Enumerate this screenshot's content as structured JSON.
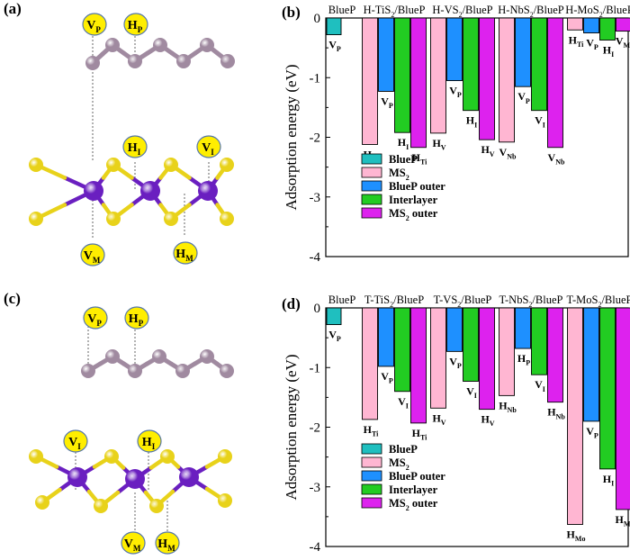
{
  "panel_labels": {
    "a": "(a)",
    "b": "(b)",
    "c": "(c)",
    "d": "(d)"
  },
  "struct_a": {
    "top_labels": [
      {
        "main": "V",
        "sub": "P"
      },
      {
        "main": "H",
        "sub": "P"
      }
    ],
    "mid_labels": [
      {
        "main": "H",
        "sub": "I"
      },
      {
        "main": "V",
        "sub": "I"
      }
    ],
    "bot_labels": [
      {
        "main": "V",
        "sub": "M"
      },
      {
        "main": "H",
        "sub": "M"
      }
    ]
  },
  "struct_c": {
    "top_labels": [
      {
        "main": "V",
        "sub": "P"
      },
      {
        "main": "H",
        "sub": "P"
      }
    ],
    "mid_labels": [
      {
        "main": "V",
        "sub": "I"
      },
      {
        "main": "H",
        "sub": "I"
      }
    ],
    "bot_labels": [
      {
        "main": "V",
        "sub": "M"
      },
      {
        "main": "H",
        "sub": "M"
      }
    ]
  },
  "colors": {
    "BlueP": "#1fbfbf",
    "MS2": "#ffb6d2",
    "BlueP outer": "#1e90ff",
    "Interlayer": "#22cc22",
    "MS2 outer": "#dd22ee",
    "phosphorus": "#a08aa0",
    "metal": "#6a1fc0",
    "sulfur": "#e8d21a",
    "label_fill": "#ffee00",
    "label_edge": "#5577aa"
  },
  "chart_data": [
    {
      "type": "bar",
      "panel": "b",
      "ylabel": "Adsorption energy (eV)",
      "ylim": [
        -4,
        0
      ],
      "yticks": [
        0,
        -1,
        -2,
        -3,
        -4
      ],
      "groups": [
        {
          "title": {
            "pre": "BlueP",
            "sub": "",
            "post": ""
          },
          "bars": [
            {
              "series": "BlueP",
              "value": -0.28,
              "label": {
                "main": "V",
                "sub": "P"
              }
            }
          ]
        },
        {
          "title": {
            "pre": "H-TiS",
            "sub": "2",
            "post": "/BlueP"
          },
          "bars": [
            {
              "series": "MS2",
              "value": -2.12,
              "label": {
                "main": "H",
                "sub": "Ti"
              }
            },
            {
              "series": "BlueP outer",
              "value": -1.23,
              "label": {
                "main": "V",
                "sub": "P"
              }
            },
            {
              "series": "Interlayer",
              "value": -1.92,
              "label": {
                "main": "H",
                "sub": "I"
              }
            },
            {
              "series": "MS2 outer",
              "value": -2.17,
              "label": {
                "main": "H",
                "sub": "Ti"
              }
            }
          ]
        },
        {
          "title": {
            "pre": "H-VS",
            "sub": "2",
            "post": "/BlueP"
          },
          "bars": [
            {
              "series": "MS2",
              "value": -1.93,
              "label": {
                "main": "H",
                "sub": "V"
              }
            },
            {
              "series": "BlueP outer",
              "value": -1.05,
              "label": {
                "main": "V",
                "sub": "P"
              }
            },
            {
              "series": "Interlayer",
              "value": -1.55,
              "label": {
                "main": "H",
                "sub": "I"
              }
            },
            {
              "series": "MS2 outer",
              "value": -2.04,
              "label": {
                "main": "H",
                "sub": "V"
              }
            }
          ]
        },
        {
          "title": {
            "pre": "H-NbS",
            "sub": "2",
            "post": "/BlueP"
          },
          "bars": [
            {
              "series": "MS2",
              "value": -2.08,
              "label": {
                "main": "V",
                "sub": "Nb"
              }
            },
            {
              "series": "BlueP outer",
              "value": -1.15,
              "label": {
                "main": "V",
                "sub": "P"
              }
            },
            {
              "series": "Interlayer",
              "value": -1.55,
              "label": {
                "main": "V",
                "sub": "I"
              }
            },
            {
              "series": "MS2 outer",
              "value": -2.17,
              "label": {
                "main": "V",
                "sub": "Nb"
              }
            }
          ]
        },
        {
          "title": {
            "pre": "H-MoS",
            "sub": "2",
            "post": "/BlueP"
          },
          "bars": [
            {
              "series": "MS2",
              "value": -0.2,
              "label": {
                "main": "H",
                "sub": "Ti"
              }
            },
            {
              "series": "BlueP outer",
              "value": -0.25,
              "label": {
                "main": "V",
                "sub": "P"
              }
            },
            {
              "series": "Interlayer",
              "value": -0.37,
              "label": {
                "main": "H",
                "sub": "I"
              }
            },
            {
              "series": "MS2 outer",
              "value": -0.22,
              "label": {
                "main": "V",
                "sub": "Mo"
              }
            }
          ]
        }
      ],
      "legend": [
        {
          "series": "BlueP",
          "pre": "BlueP",
          "sub": "",
          "post": ""
        },
        {
          "series": "MS2",
          "pre": "MS",
          "sub": "2",
          "post": ""
        },
        {
          "series": "BlueP outer",
          "pre": "BlueP outer",
          "sub": "",
          "post": ""
        },
        {
          "series": "Interlayer",
          "pre": "Interlayer",
          "sub": "",
          "post": ""
        },
        {
          "series": "MS2 outer",
          "pre": "MS",
          "sub": "2",
          "post": " outer"
        }
      ]
    },
    {
      "type": "bar",
      "panel": "d",
      "ylabel": "Adsorption energy (eV)",
      "ylim": [
        -4,
        0
      ],
      "yticks": [
        0,
        -1,
        -2,
        -3,
        -4
      ],
      "groups": [
        {
          "title": {
            "pre": "BlueP",
            "sub": "",
            "post": ""
          },
          "bars": [
            {
              "series": "BlueP",
              "value": -0.28,
              "label": {
                "main": "V",
                "sub": "P"
              }
            }
          ]
        },
        {
          "title": {
            "pre": "T-TiS",
            "sub": "2",
            "post": "/BlueP"
          },
          "bars": [
            {
              "series": "MS2",
              "value": -1.87,
              "label": {
                "main": "H",
                "sub": "Ti"
              }
            },
            {
              "series": "BlueP outer",
              "value": -0.98,
              "label": {
                "main": "V",
                "sub": "P"
              }
            },
            {
              "series": "Interlayer",
              "value": -1.4,
              "label": {
                "main": "V",
                "sub": "I"
              }
            },
            {
              "series": "MS2 outer",
              "value": -1.93,
              "label": {
                "main": "H",
                "sub": "Ti"
              }
            }
          ]
        },
        {
          "title": {
            "pre": "T-VS",
            "sub": "2",
            "post": "/BlueP"
          },
          "bars": [
            {
              "series": "MS2",
              "value": -1.68,
              "label": {
                "main": "H",
                "sub": "V"
              }
            },
            {
              "series": "BlueP outer",
              "value": -0.73,
              "label": {
                "main": "V",
                "sub": "P"
              }
            },
            {
              "series": "Interlayer",
              "value": -1.23,
              "label": {
                "main": "V",
                "sub": "I"
              }
            },
            {
              "series": "MS2 outer",
              "value": -1.7,
              "label": {
                "main": "H",
                "sub": "V"
              }
            }
          ]
        },
        {
          "title": {
            "pre": "T-NbS",
            "sub": "2",
            "post": "/BlueP"
          },
          "bars": [
            {
              "series": "MS2",
              "value": -1.47,
              "label": {
                "main": "H",
                "sub": "Nb"
              }
            },
            {
              "series": "BlueP outer",
              "value": -0.68,
              "label": {
                "main": "H",
                "sub": "P"
              }
            },
            {
              "series": "Interlayer",
              "value": -1.12,
              "label": {
                "main": "V",
                "sub": "I"
              }
            },
            {
              "series": "MS2 outer",
              "value": -1.58,
              "label": {
                "main": "H",
                "sub": "Nb"
              }
            }
          ]
        },
        {
          "title": {
            "pre": "T-MoS",
            "sub": "2",
            "post": "/BlueP"
          },
          "bars": [
            {
              "series": "MS2",
              "value": -3.63,
              "label": {
                "main": "H",
                "sub": "Mo"
              }
            },
            {
              "series": "BlueP outer",
              "value": -1.9,
              "label": {
                "main": "V",
                "sub": "P"
              }
            },
            {
              "series": "Interlayer",
              "value": -2.7,
              "label": {
                "main": "H",
                "sub": "I"
              }
            },
            {
              "series": "MS2 outer",
              "value": -3.38,
              "label": {
                "main": "H",
                "sub": "Mo"
              }
            }
          ]
        }
      ],
      "legend": [
        {
          "series": "BlueP",
          "pre": "BlueP",
          "sub": "",
          "post": ""
        },
        {
          "series": "MS2",
          "pre": "MS",
          "sub": "2",
          "post": ""
        },
        {
          "series": "BlueP outer",
          "pre": "BlueP outer",
          "sub": "",
          "post": ""
        },
        {
          "series": "Interlayer",
          "pre": "Interlayer",
          "sub": "",
          "post": ""
        },
        {
          "series": "MS2 outer",
          "pre": "MS",
          "sub": "2",
          "post": " outer"
        }
      ]
    }
  ]
}
